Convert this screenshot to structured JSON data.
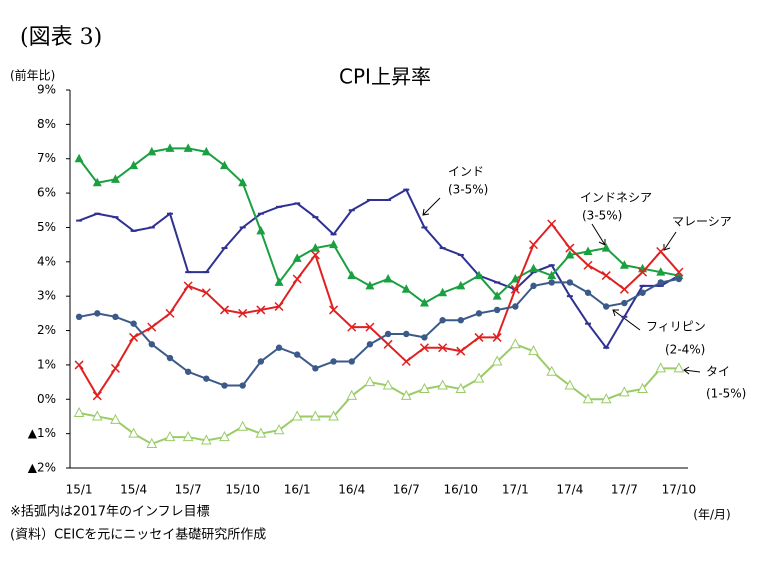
{
  "figure_label": "(図表 3)",
  "chart_data": {
    "type": "line",
    "title": "CPI上昇率",
    "y_label": "(前年比)",
    "x_unit": "(年/月)",
    "notes": [
      "※括弧内は2017年のインフレ目標",
      "(資料）CEICを元にニッセイ基礎研究所作成"
    ],
    "categories": [
      "15/1",
      null,
      null,
      "15/4",
      null,
      null,
      "15/7",
      null,
      null,
      "15/10",
      null,
      null,
      "16/1",
      null,
      null,
      "16/4",
      null,
      null,
      "16/7",
      null,
      null,
      "16/10",
      null,
      null,
      "17/1",
      null,
      null,
      "17/4",
      null,
      null,
      "17/7",
      null,
      null,
      "17/10"
    ],
    "ylim": [
      -2,
      9
    ],
    "yticks": [
      {
        "value": 9,
        "label": "9%"
      },
      {
        "value": 8,
        "label": "8%"
      },
      {
        "value": 7,
        "label": "7%"
      },
      {
        "value": 6,
        "label": "6%"
      },
      {
        "value": 5,
        "label": "5%"
      },
      {
        "value": 4,
        "label": "4%"
      },
      {
        "value": 3,
        "label": "3%"
      },
      {
        "value": 2,
        "label": "2%"
      },
      {
        "value": 1,
        "label": "1%"
      },
      {
        "value": 0,
        "label": "0%"
      },
      {
        "value": -1,
        "label": "▲1%"
      },
      {
        "value": -2,
        "label": "▲2%"
      }
    ],
    "grid": false,
    "series": [
      {
        "name": "インド",
        "target": "(3-5%)",
        "color": "#2e3192",
        "marker": "dash",
        "values": [
          5.2,
          5.4,
          5.3,
          4.9,
          5.0,
          5.4,
          3.7,
          3.7,
          4.4,
          5.0,
          5.4,
          5.6,
          5.7,
          5.3,
          4.8,
          5.5,
          5.8,
          5.8,
          6.1,
          5.0,
          4.4,
          4.2,
          3.6,
          3.4,
          3.2,
          3.7,
          3.9,
          3.0,
          2.2,
          1.5,
          2.4,
          3.3,
          3.3,
          3.6
        ]
      },
      {
        "name": "インドネシア",
        "target": "(3-5%)",
        "color": "#1aa040",
        "marker": "triangle",
        "values": [
          7.0,
          6.3,
          6.4,
          6.8,
          7.2,
          7.3,
          7.3,
          7.2,
          6.8,
          6.3,
          4.9,
          3.4,
          4.1,
          4.4,
          4.5,
          3.6,
          3.3,
          3.5,
          3.2,
          2.8,
          3.1,
          3.3,
          3.6,
          3.0,
          3.5,
          3.8,
          3.6,
          4.2,
          4.3,
          4.4,
          3.9,
          3.8,
          3.7,
          3.6
        ]
      },
      {
        "name": "マレーシア",
        "color": "#e02020",
        "marker": "x",
        "values": [
          1.0,
          0.1,
          0.9,
          1.8,
          2.1,
          2.5,
          3.3,
          3.1,
          2.6,
          2.5,
          2.6,
          2.7,
          3.5,
          4.2,
          2.6,
          2.1,
          2.1,
          1.6,
          1.1,
          1.5,
          1.5,
          1.4,
          1.8,
          1.8,
          3.2,
          4.5,
          5.1,
          4.4,
          3.9,
          3.6,
          3.2,
          3.7,
          4.3,
          3.7
        ]
      },
      {
        "name": "フィリピン",
        "target": "(2-4%)",
        "color": "#3b5a8a",
        "marker": "circle",
        "values": [
          2.4,
          2.5,
          2.4,
          2.2,
          1.6,
          1.2,
          0.8,
          0.6,
          0.4,
          0.4,
          1.1,
          1.5,
          1.3,
          0.9,
          1.1,
          1.1,
          1.6,
          1.9,
          1.9,
          1.8,
          2.3,
          2.3,
          2.5,
          2.6,
          2.7,
          3.3,
          3.4,
          3.4,
          3.1,
          2.7,
          2.8,
          3.1,
          3.4,
          3.5
        ]
      },
      {
        "name": "タイ",
        "target": "(1-5%)",
        "color": "#99cc66",
        "marker": "open-triangle",
        "values": [
          -0.4,
          -0.5,
          -0.6,
          -1.0,
          -1.3,
          -1.1,
          -1.1,
          -1.2,
          -1.1,
          -0.8,
          -1.0,
          -0.9,
          -0.5,
          -0.5,
          -0.5,
          0.1,
          0.5,
          0.4,
          0.1,
          0.3,
          0.4,
          0.3,
          0.6,
          1.1,
          1.6,
          1.4,
          0.8,
          0.4,
          0.0,
          0.0,
          0.2,
          0.3,
          0.9,
          0.9
        ]
      }
    ]
  }
}
